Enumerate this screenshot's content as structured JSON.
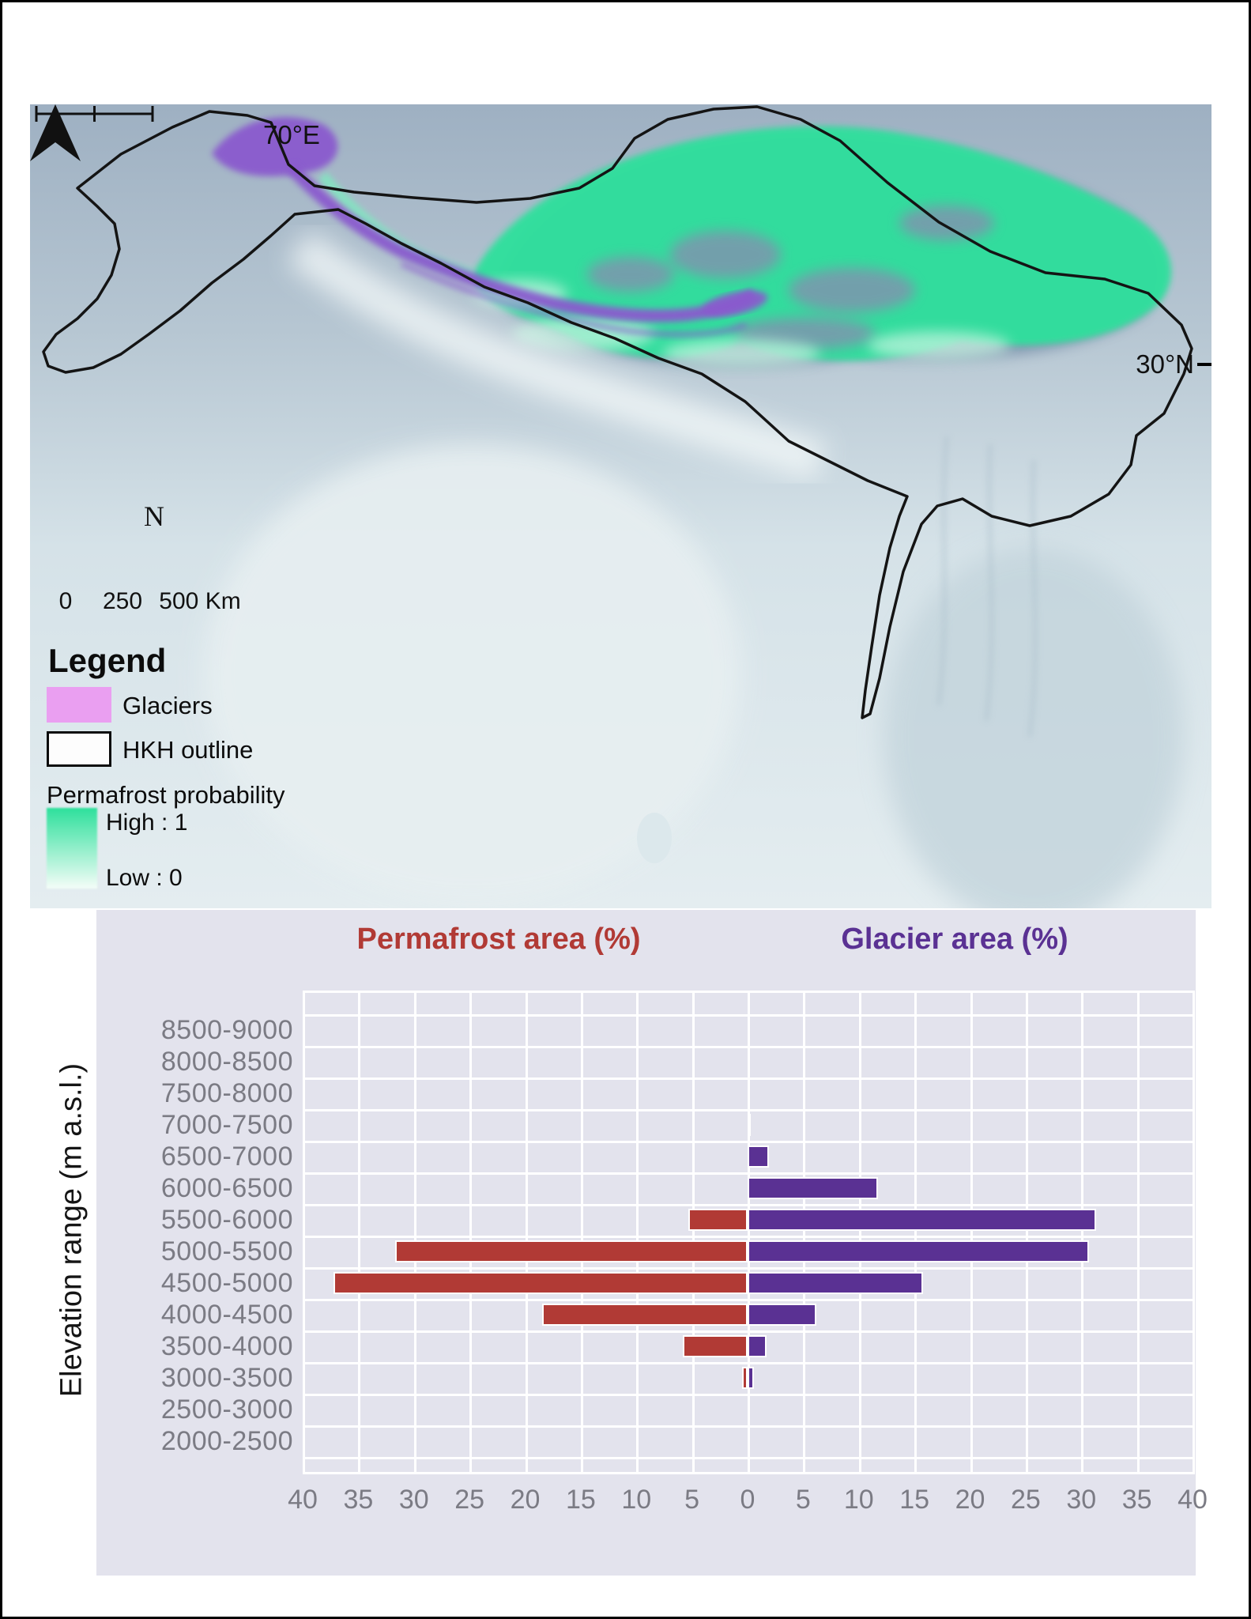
{
  "map": {
    "lon_label": "70°E",
    "lat_label": "30°N",
    "north_label": "N",
    "scalebar": {
      "label_start": "0",
      "label_mid": "250",
      "label_end": "500 Km"
    },
    "legend": {
      "title": "Legend",
      "glaciers_label": "Glaciers",
      "outline_label": "HKH outline",
      "ramp_title": "Permafrost probability",
      "ramp_high": "High : 1",
      "ramp_low": "Low : 0"
    },
    "colors": {
      "permafrost_high": "#2ee09c",
      "permafrost_low": "#f4fdf8",
      "glacier_on_map": "#8a5ace",
      "glacier_legend_swatch": "#ea9ff1",
      "hkh_outline": "#141414"
    }
  },
  "chart_data": {
    "type": "bar",
    "orientation": "diverging-horizontal",
    "title_left": "Permafrost area (%)",
    "title_right": "Glacier area (%)",
    "ylabel": "Elevation range (m a.s.l.)",
    "categories": [
      "8500-9000",
      "8000-8500",
      "7500-8000",
      "7000-7500",
      "6500-7000",
      "6000-6500",
      "5500-6000",
      "5000-5500",
      "4500-5000",
      "4000-4500",
      "3500-4000",
      "3000-3500",
      "2500-3000",
      "2000-2500"
    ],
    "series": [
      {
        "name": "Permafrost area (%)",
        "side": "left",
        "color": "#b13a35",
        "values": [
          0,
          0,
          0,
          0,
          0,
          0,
          5.3,
          31.7,
          37.2,
          18.5,
          5.8,
          0.5,
          0,
          0
        ]
      },
      {
        "name": "Glacier area (%)",
        "side": "right",
        "color": "#5a3193",
        "values": [
          0,
          0,
          0,
          0.2,
          1.9,
          11.7,
          31.3,
          30.7,
          15.8,
          6.2,
          1.7,
          0.6,
          0,
          0
        ]
      }
    ],
    "x_ticks": [
      "40",
      "35",
      "30",
      "25",
      "20",
      "15",
      "10",
      "5",
      "0",
      "5",
      "10",
      "15",
      "20",
      "25",
      "30",
      "35",
      "40"
    ],
    "x_max_each_side": 40,
    "grid": true,
    "panel_bg": "#e3e3ed",
    "tick_color": "#7b7b84"
  }
}
